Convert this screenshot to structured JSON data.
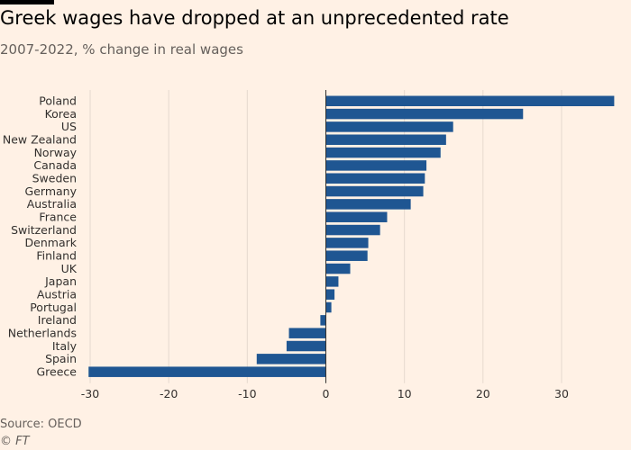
{
  "title": "Greek wages have dropped at an unprecedented rate",
  "subtitle": "2007-2022, % change in real wages",
  "source": "Source: OECD",
  "credit": "© FT",
  "colors": {
    "bar": "#1f5692",
    "background": "#fff1e5",
    "grid": "#e6d9ce",
    "zero": "#33302e"
  },
  "chart_data": {
    "type": "bar",
    "orientation": "horizontal",
    "title": "Greek wages have dropped at an unprecedented rate",
    "subtitle": "2007-2022, % change in real wages",
    "xlim": [
      -30,
      37
    ],
    "x_ticks": [
      -30,
      -20,
      -10,
      0,
      10,
      20,
      30
    ],
    "grid": true,
    "categories": [
      "Poland",
      "Korea",
      "US",
      "New Zealand",
      "Norway",
      "Canada",
      "Sweden",
      "Germany",
      "Australia",
      "France",
      "Switzerland",
      "Denmark",
      "Finland",
      "UK",
      "Japan",
      "Austria",
      "Portugal",
      "Ireland",
      "Netherlands",
      "Italy",
      "Spain",
      "Greece"
    ],
    "values": [
      36.7,
      25.1,
      16.2,
      15.3,
      14.6,
      12.8,
      12.6,
      12.4,
      10.8,
      7.8,
      6.9,
      5.4,
      5.3,
      3.1,
      1.6,
      1.1,
      0.7,
      -0.7,
      -4.7,
      -5.0,
      -8.8,
      -30.2
    ]
  }
}
